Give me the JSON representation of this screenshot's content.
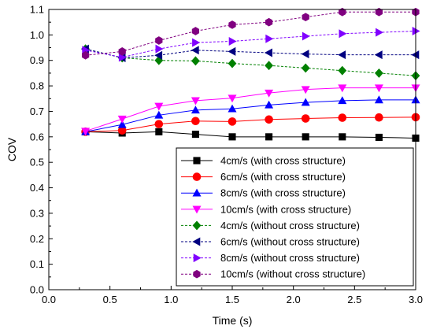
{
  "chart_data": {
    "type": "line",
    "xlabel": "Time (s)",
    "ylabel": "COV",
    "xlim": [
      0.0,
      3.0
    ],
    "ylim": [
      0.0,
      1.1
    ],
    "xticks": [
      "0.0",
      "0.5",
      "1.0",
      "1.5",
      "2.0",
      "2.5",
      "3.0"
    ],
    "yticks": [
      "0.0",
      "0.1",
      "0.2",
      "0.3",
      "0.4",
      "0.5",
      "0.6",
      "0.7",
      "0.8",
      "0.9",
      "1.0",
      "1.1"
    ],
    "x": [
      0.3,
      0.6,
      0.9,
      1.2,
      1.5,
      1.8,
      2.1,
      2.4,
      2.7,
      3.0
    ],
    "legend_position": "bottom-right",
    "grid": false,
    "series": [
      {
        "name": "4cm/s (with cross structure)",
        "color": "#000000",
        "marker": "square",
        "dashed": false,
        "values": [
          0.62,
          0.615,
          0.62,
          0.61,
          0.6,
          0.6,
          0.6,
          0.6,
          0.598,
          0.595
        ]
      },
      {
        "name": "6cm/s (with cross structure)",
        "color": "#ff0000",
        "marker": "circle",
        "dashed": false,
        "values": [
          0.62,
          0.625,
          0.65,
          0.662,
          0.66,
          0.668,
          0.672,
          0.675,
          0.676,
          0.677
        ]
      },
      {
        "name": "8cm/s (with cross structure)",
        "color": "#0000ff",
        "marker": "triangle-up",
        "dashed": false,
        "values": [
          0.62,
          0.648,
          0.685,
          0.705,
          0.71,
          0.725,
          0.735,
          0.742,
          0.745,
          0.745
        ]
      },
      {
        "name": "10cm/s (with cross structure)",
        "color": "#ff00ff",
        "marker": "triangle-down",
        "dashed": false,
        "values": [
          0.622,
          0.67,
          0.72,
          0.742,
          0.752,
          0.772,
          0.786,
          0.792,
          0.792,
          0.792
        ]
      },
      {
        "name": "4cm/s (without cross structure)",
        "color": "#008000",
        "marker": "diamond",
        "dashed": true,
        "values": [
          0.945,
          0.91,
          0.9,
          0.898,
          0.888,
          0.88,
          0.87,
          0.86,
          0.85,
          0.84
        ]
      },
      {
        "name": "6cm/s (without cross structure)",
        "color": "#000080",
        "marker": "triangle-left",
        "dashed": true,
        "values": [
          0.945,
          0.91,
          0.92,
          0.94,
          0.935,
          0.93,
          0.925,
          0.922,
          0.922,
          0.922
        ]
      },
      {
        "name": "8cm/s (without cross structure)",
        "color": "#8000ff",
        "marker": "triangle-right",
        "dashed": true,
        "values": [
          0.94,
          0.912,
          0.945,
          0.97,
          0.975,
          0.985,
          0.995,
          1.005,
          1.01,
          1.015
        ]
      },
      {
        "name": "10cm/s (without cross structure)",
        "color": "#800080",
        "marker": "hexagon",
        "dashed": true,
        "values": [
          0.92,
          0.935,
          0.978,
          1.015,
          1.04,
          1.05,
          1.07,
          1.09,
          1.09,
          1.09
        ]
      }
    ]
  }
}
